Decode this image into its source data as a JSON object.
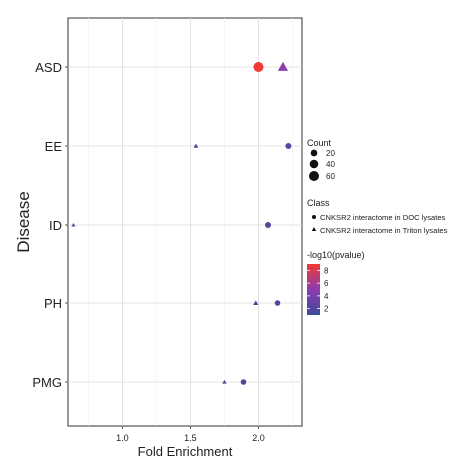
{
  "chart_data": {
    "type": "scatter",
    "xlabel": "Fold Enrichment",
    "ylabel": "Disease",
    "xlim": [
      0.6,
      2.32
    ],
    "x_ticks": [
      1.0,
      1.5,
      2.0
    ],
    "x_tick_labels": [
      "1.0",
      "1.5",
      "2.0"
    ],
    "categories": [
      "ASD",
      "EE",
      "ID",
      "PH",
      "PMG"
    ],
    "grid": true,
    "legend_placement": "right",
    "series": [
      {
        "name": "CNKSR2 interactome in DOC lysates",
        "marker": "circle",
        "points": [
          {
            "disease": "ASD",
            "x": 2.0,
            "count": 60,
            "neg_log10_pvalue": 9.0
          },
          {
            "disease": "EE",
            "x": 2.22,
            "count": 15,
            "neg_log10_pvalue": 2.7
          },
          {
            "disease": "ID",
            "x": 2.07,
            "count": 15,
            "neg_log10_pvalue": 2.5
          },
          {
            "disease": "PH",
            "x": 2.14,
            "count": 12,
            "neg_log10_pvalue": 2.0
          },
          {
            "disease": "PMG",
            "x": 1.89,
            "count": 12,
            "neg_log10_pvalue": 1.8
          }
        ]
      },
      {
        "name": "CNKSR2 interactome in Triton lysates",
        "marker": "triangle",
        "points": [
          {
            "disease": "ASD",
            "x": 2.18,
            "count": 55,
            "neg_log10_pvalue": 5.0
          },
          {
            "disease": "EE",
            "x": 1.54,
            "count": 6,
            "neg_log10_pvalue": 1.5
          },
          {
            "disease": "ID",
            "x": 0.64,
            "count": 3,
            "neg_log10_pvalue": 1.2
          },
          {
            "disease": "PH",
            "x": 1.98,
            "count": 8,
            "neg_log10_pvalue": 1.6
          },
          {
            "disease": "PMG",
            "x": 1.75,
            "count": 4,
            "neg_log10_pvalue": 1.3
          }
        ]
      }
    ],
    "legend": {
      "size_title": "Count",
      "size_values": [
        20,
        40,
        60
      ],
      "shape_title": "Class",
      "color_title": "-log10(pvalue)",
      "color_ticks": [
        2,
        4,
        6,
        8
      ],
      "color_range": [
        1,
        9
      ],
      "color_low": "#3c4a9a",
      "color_mid": "#8b3cae",
      "color_high": "#ef3a36"
    }
  }
}
